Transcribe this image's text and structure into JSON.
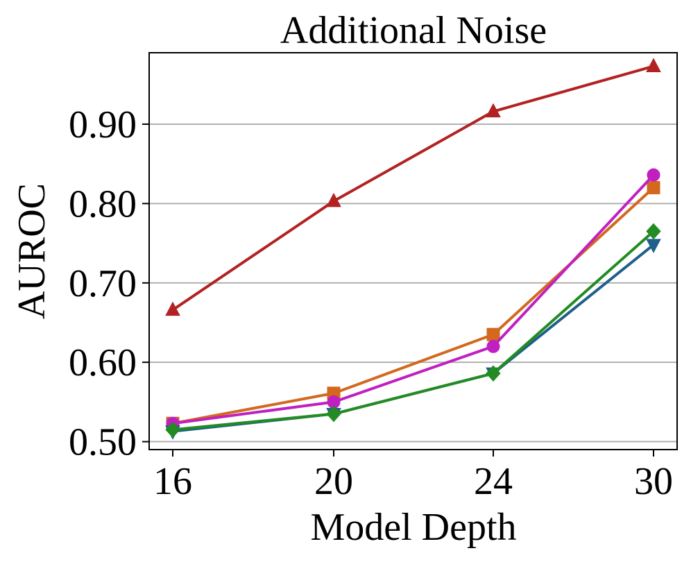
{
  "chart_data": {
    "type": "line",
    "title": "Additional Noise",
    "xlabel": "Model Depth",
    "ylabel": "AUROC",
    "categories": [
      "16",
      "20",
      "24",
      "30"
    ],
    "yticks": [
      "0.50",
      "0.60",
      "0.70",
      "0.80",
      "0.90"
    ],
    "ytick_values": [
      0.5,
      0.6,
      0.7,
      0.8,
      0.9
    ],
    "ylim": [
      0.49,
      0.99
    ],
    "grid": "horizontal",
    "series": [
      {
        "name": "series-red-triangle",
        "color": "#b22222",
        "marker": "triangle-up",
        "values": [
          0.666,
          0.803,
          0.916,
          0.973
        ]
      },
      {
        "name": "series-orange-square",
        "color": "#d2691e",
        "marker": "square",
        "values": [
          0.523,
          0.561,
          0.635,
          0.82
        ]
      },
      {
        "name": "series-magenta-circle",
        "color": "#c020c0",
        "marker": "circle",
        "values": [
          0.523,
          0.55,
          0.62,
          0.836
        ]
      },
      {
        "name": "series-blue-triangle-down",
        "color": "#1f5f8b",
        "marker": "triangle-down",
        "values": [
          0.513,
          0.535,
          0.586,
          0.748
        ]
      },
      {
        "name": "series-green-diamond",
        "color": "#228b22",
        "marker": "diamond",
        "values": [
          0.515,
          0.535,
          0.586,
          0.765
        ]
      }
    ]
  }
}
